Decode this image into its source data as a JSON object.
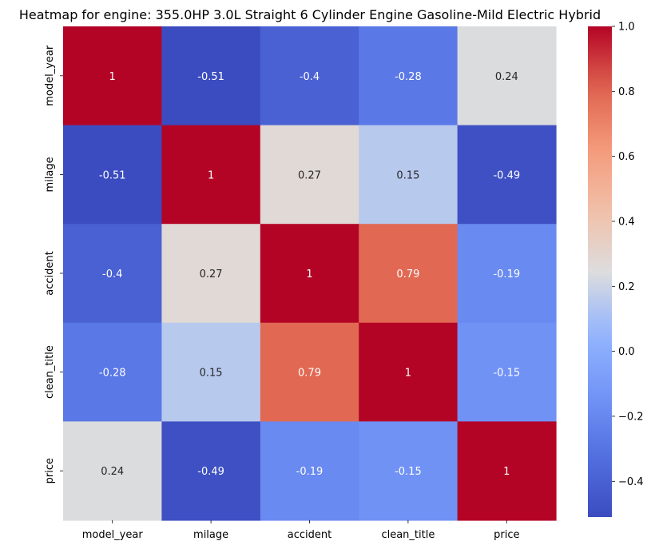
{
  "chart_data": {
    "type": "heatmap",
    "title": "Heatmap for engine: 355.0HP 3.0L Straight 6 Cylinder Engine Gasoline-Mild Electric Hybrid",
    "x_categories": [
      "model_year",
      "milage",
      "accident",
      "clean_title",
      "price"
    ],
    "y_categories": [
      "model_year",
      "milage",
      "accident",
      "clean_title",
      "price"
    ],
    "values": [
      [
        1,
        -0.51,
        -0.4,
        -0.28,
        0.24
      ],
      [
        -0.51,
        1,
        0.27,
        0.15,
        -0.49
      ],
      [
        -0.4,
        0.27,
        1,
        0.79,
        -0.19
      ],
      [
        -0.28,
        0.15,
        0.79,
        1,
        -0.15
      ],
      [
        0.24,
        -0.49,
        -0.19,
        -0.15,
        1
      ]
    ],
    "annotations": [
      [
        "1",
        "-0.51",
        "-0.4",
        "-0.28",
        "0.24"
      ],
      [
        "-0.51",
        "1",
        "0.27",
        "0.15",
        "-0.49"
      ],
      [
        "-0.4",
        "0.27",
        "1",
        "0.79",
        "-0.19"
      ],
      [
        "-0.28",
        "0.15",
        "0.79",
        "1",
        "-0.15"
      ],
      [
        "0.24",
        "-0.49",
        "-0.19",
        "-0.15",
        "1"
      ]
    ],
    "colormap": "coolwarm",
    "vmin": -0.51,
    "vmax": 1,
    "colorbar_ticks": [
      1.0,
      0.8,
      0.6,
      0.4,
      0.2,
      0.0,
      -0.2,
      -0.4
    ],
    "colorbar_tick_labels": [
      "1.0",
      "0.8",
      "0.6",
      "0.4",
      "0.2",
      "0.0",
      "−0.2",
      "−0.4"
    ]
  }
}
